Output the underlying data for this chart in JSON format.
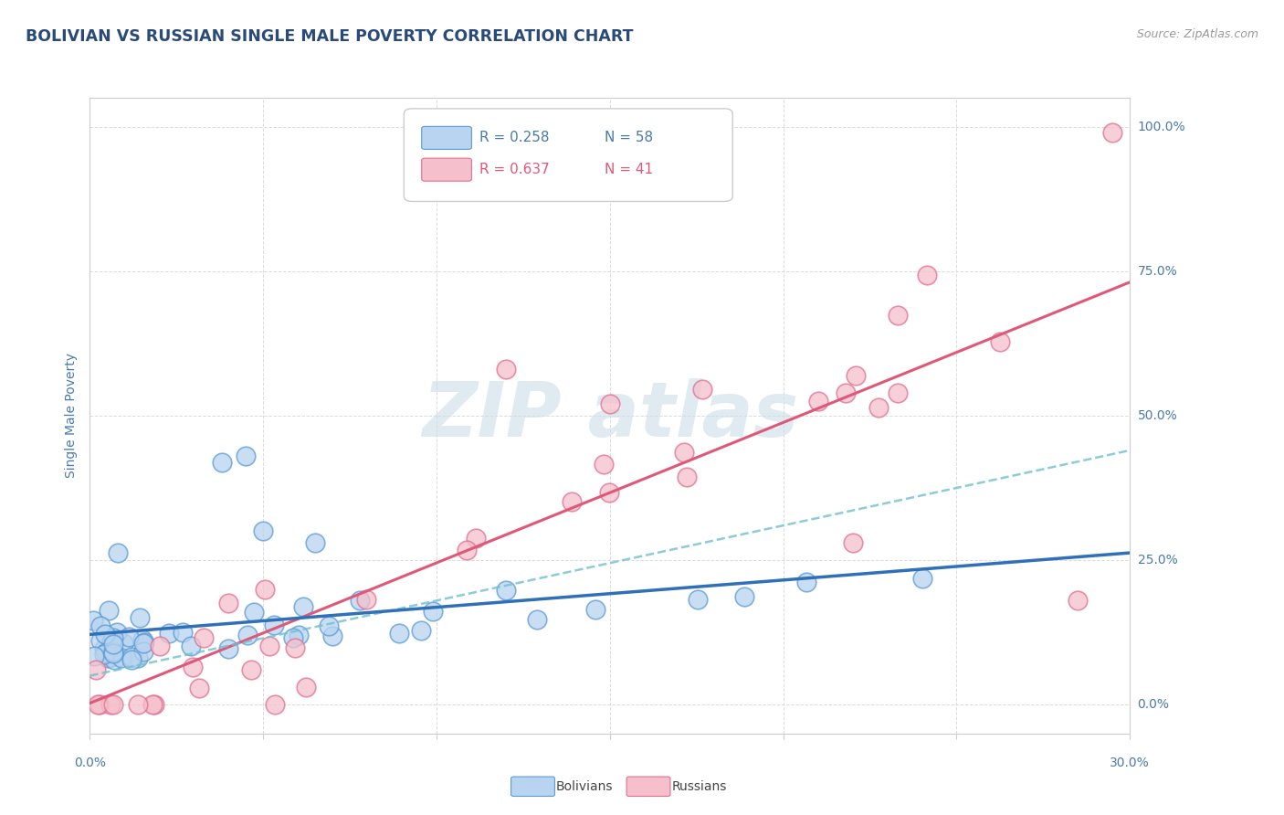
{
  "title": "BOLIVIAN VS RUSSIAN SINGLE MALE POVERTY CORRELATION CHART",
  "source": "Source: ZipAtlas.com",
  "ylabel": "Single Male Poverty",
  "right_yticks": [
    "100.0%",
    "75.0%",
    "50.0%",
    "25.0%",
    "0.0%"
  ],
  "right_ytick_vals": [
    1.0,
    0.75,
    0.5,
    0.25,
    0.0
  ],
  "legend_bolivians": "Bolivians",
  "legend_russians": "Russians",
  "r_bolivians": 0.258,
  "n_bolivians": 58,
  "r_russians": 0.637,
  "n_russians": 41,
  "color_bolivians_face": "#b8d4f0",
  "color_bolivians_edge": "#5b9bd5",
  "color_russians_face": "#f5c0cb",
  "color_russians_edge": "#e07090",
  "line_color_bolivians": "#3070b8",
  "line_color_russians": "#e05878",
  "line_color_dashed": "#70c0d0",
  "background_color": "#ffffff",
  "grid_color": "#d8d8d8",
  "title_color": "#2a4a7a",
  "axis_label_color": "#4a7aaa",
  "watermark_color": "#ccdde8",
  "xlim": [
    0.0,
    0.3
  ],
  "ylim": [
    -0.05,
    1.05
  ]
}
